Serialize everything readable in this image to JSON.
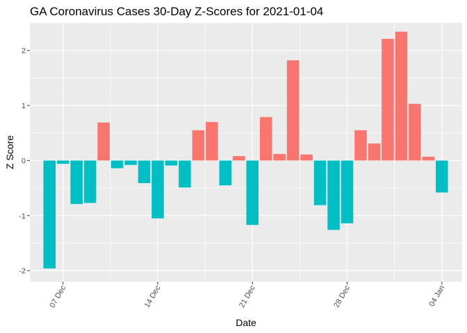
{
  "chart_data": {
    "type": "bar",
    "title": "GA Coronavirus Cases 30-Day Z-Scores for 2021-01-04",
    "xlabel": "Date",
    "ylabel": "Z Score",
    "ylim": [
      -2.2,
      2.5
    ],
    "yticks": [
      -2,
      -1,
      0,
      1,
      2
    ],
    "xticks": [
      {
        "label": "07 Dec",
        "index": 1
      },
      {
        "label": "14 Dec",
        "index": 8
      },
      {
        "label": "21 Dec",
        "index": 15
      },
      {
        "label": "28 Dec",
        "index": 22
      },
      {
        "label": "04 Jan",
        "index": 29
      }
    ],
    "x_index_range": [
      -1.45,
      30.5
    ],
    "positive_color": "#F8766D",
    "negative_color": "#00BFC4",
    "panel_color": "#EBEBEB",
    "grid_color": "#FFFFFF",
    "values": [
      -1.96,
      -0.06,
      -0.79,
      -0.77,
      0.69,
      -0.14,
      -0.08,
      -0.41,
      -1.05,
      -0.09,
      -0.49,
      0.55,
      0.7,
      -0.45,
      0.08,
      -1.17,
      0.79,
      0.12,
      1.82,
      0.11,
      -0.81,
      -1.26,
      -1.14,
      0.55,
      0.31,
      2.21,
      2.34,
      1.03,
      0.07,
      -0.58
    ]
  }
}
